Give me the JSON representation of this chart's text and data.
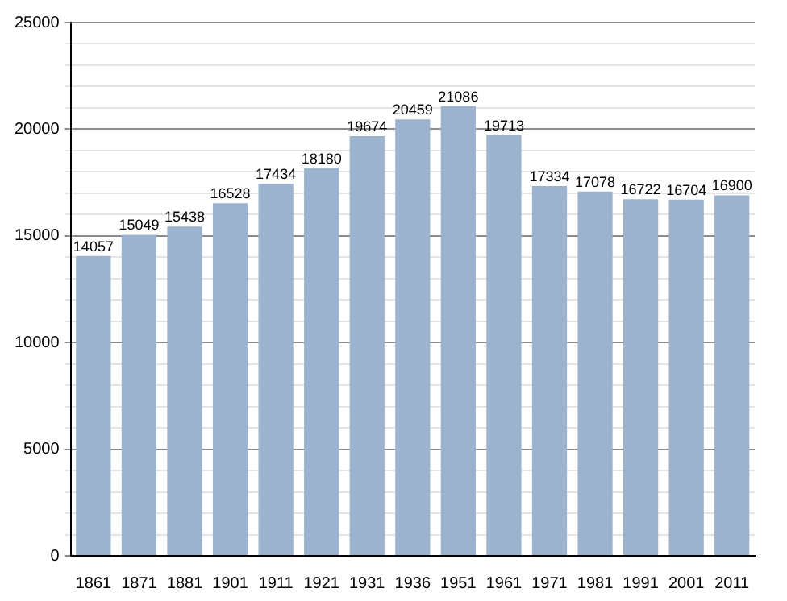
{
  "chart_data": {
    "type": "bar",
    "categories": [
      "1861",
      "1871",
      "1881",
      "1901",
      "1911",
      "1921",
      "1931",
      "1936",
      "1951",
      "1961",
      "1971",
      "1981",
      "1991",
      "2001",
      "2011"
    ],
    "values": [
      14057,
      15049,
      15438,
      16528,
      17434,
      18180,
      19674,
      20459,
      21086,
      19713,
      17334,
      17078,
      16722,
      16704,
      16900
    ],
    "color": "#9cb3cf",
    "ylim": [
      0,
      25000
    ],
    "yticks": [
      0,
      {
        "value": 1000,
        "label": null
      },
      {
        "value": 2000,
        "label": null
      },
      {
        "value": 3000,
        "label": null
      },
      {
        "value": 4000,
        "label": null
      },
      5000,
      {
        "value": 6000,
        "label": null
      },
      {
        "value": 7000,
        "label": null
      },
      {
        "value": 8000,
        "label": null
      },
      {
        "value": 9000,
        "label": null
      },
      10000,
      {
        "value": 11000,
        "label": null
      },
      {
        "value": 12000,
        "label": null
      },
      {
        "value": 13000,
        "label": null
      },
      {
        "value": 14000,
        "label": null
      },
      15000,
      {
        "value": 16000,
        "label": null
      },
      {
        "value": 17000,
        "label": null
      },
      {
        "value": 18000,
        "label": null
      },
      {
        "value": 19000,
        "label": null
      },
      20000,
      {
        "value": 21000,
        "label": null
      },
      {
        "value": 22000,
        "label": null
      },
      {
        "value": 23000,
        "label": null
      },
      {
        "value": 24000,
        "label": null
      },
      25000
    ],
    "grid": "y",
    "data_labels": true,
    "legend": false
  }
}
